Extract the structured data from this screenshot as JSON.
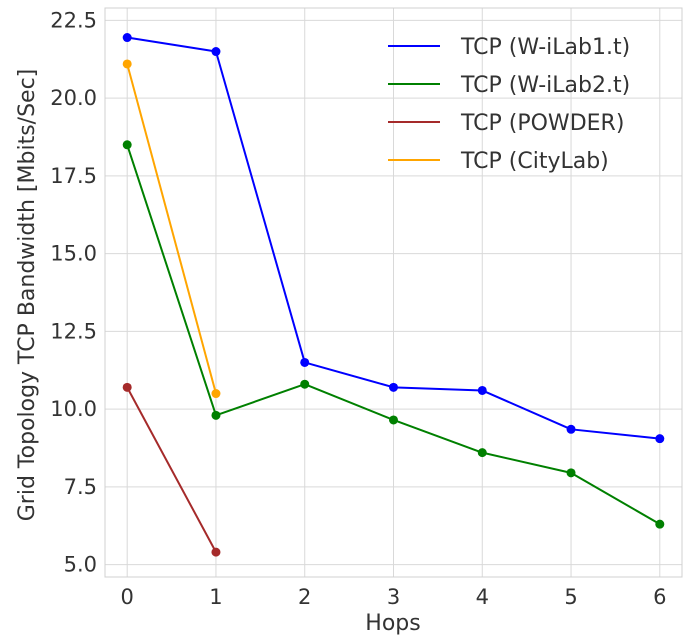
{
  "chart_data": {
    "type": "line",
    "xlabel": "Hops",
    "ylabel": "Grid Topology TCP Bandwidth [Mbits/Sec]",
    "x_ticks": [
      "0",
      "1",
      "2",
      "3",
      "4",
      "5",
      "6"
    ],
    "y_ticks": [
      "5.0",
      "7.5",
      "10.0",
      "12.5",
      "15.0",
      "17.5",
      "20.0",
      "22.5"
    ],
    "xlim": [
      -0.25,
      6.25
    ],
    "ylim": [
      4.6,
      22.9
    ],
    "grid": true,
    "legend_position": "top-right",
    "series": [
      {
        "name": "TCP (W-iLab1.t)",
        "color": "#0000ff",
        "x": [
          0,
          1,
          2,
          3,
          4,
          5,
          6
        ],
        "y": [
          21.95,
          21.5,
          11.5,
          10.7,
          10.6,
          9.35,
          9.05
        ]
      },
      {
        "name": "TCP (W-iLab2.t)",
        "color": "#008000",
        "x": [
          0,
          1,
          2,
          3,
          4,
          5,
          6
        ],
        "y": [
          18.5,
          9.8,
          10.8,
          9.65,
          8.6,
          7.95,
          6.3
        ]
      },
      {
        "name": "TCP (POWDER)",
        "color": "#a52a2a",
        "x": [
          0,
          1
        ],
        "y": [
          10.7,
          5.4
        ]
      },
      {
        "name": "TCP (CityLab)",
        "color": "#ffa500",
        "x": [
          0,
          1
        ],
        "y": [
          21.1,
          10.5
        ]
      }
    ]
  }
}
